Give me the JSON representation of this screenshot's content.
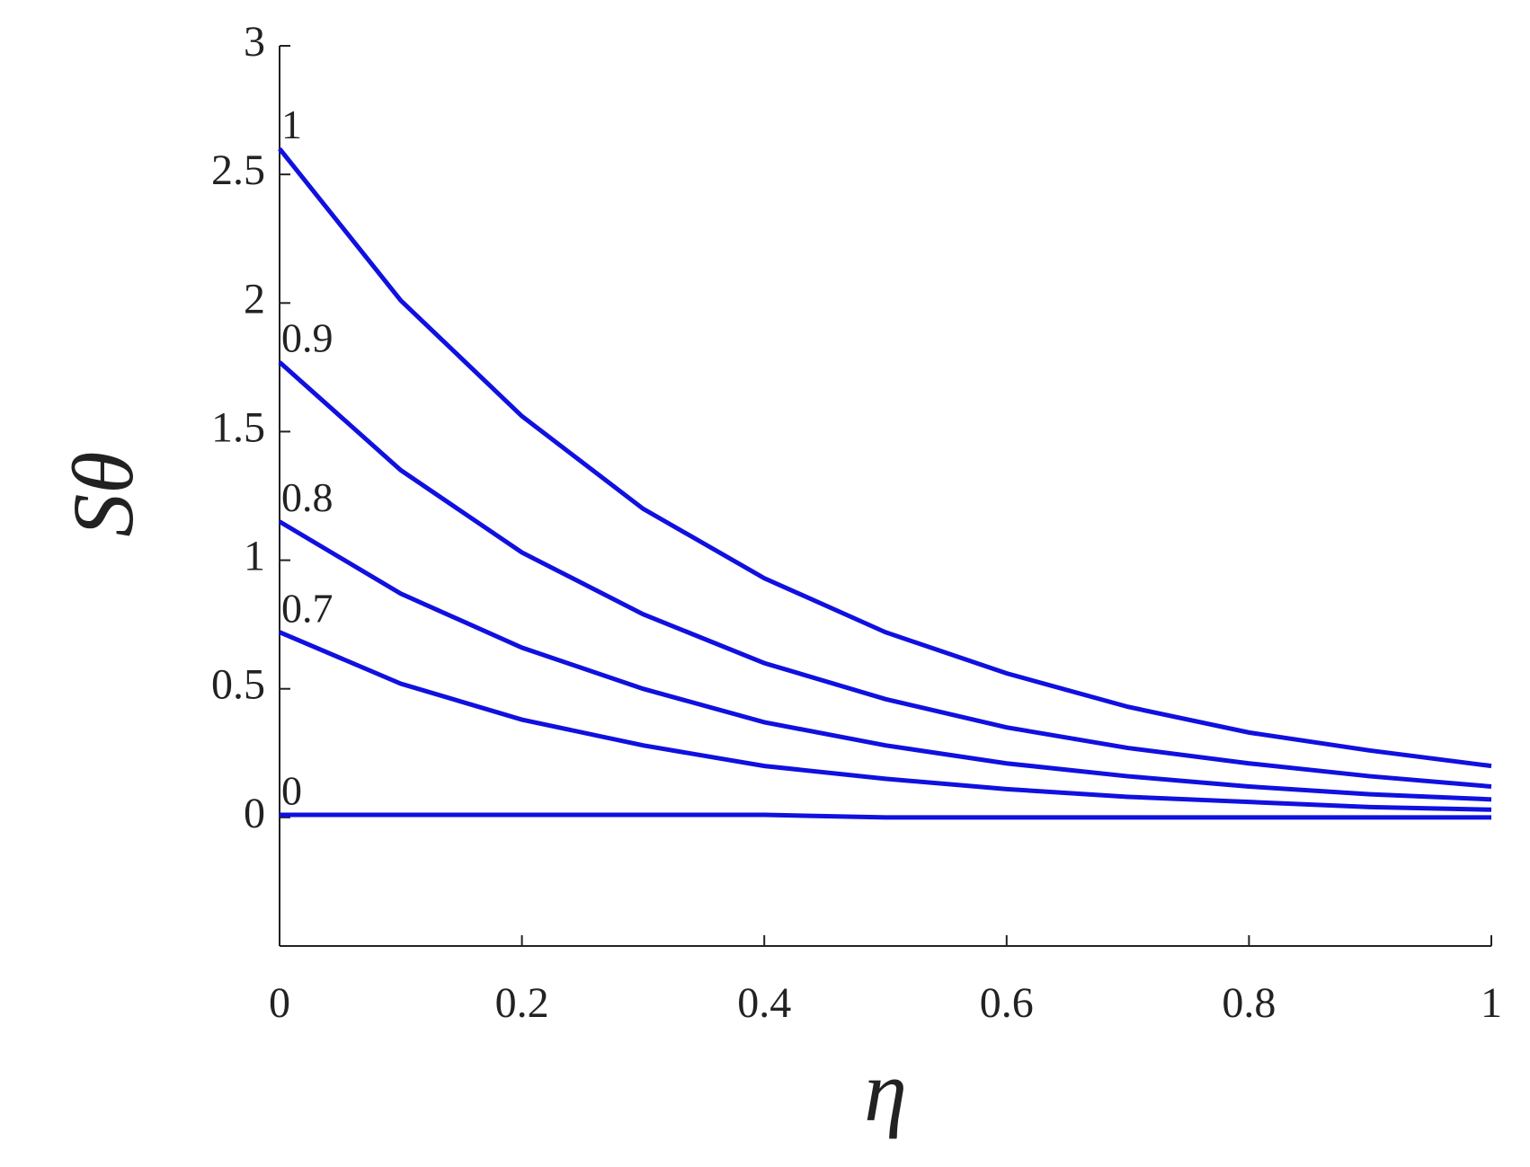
{
  "chart_data": {
    "type": "line",
    "xlabel": "η",
    "ylabel": "Sθ",
    "x": [
      0,
      0.1,
      0.2,
      0.3,
      0.4,
      0.5,
      0.6,
      0.7,
      0.8,
      0.9,
      1
    ],
    "series": [
      {
        "name": "1",
        "color": "#1010e0",
        "values": [
          2.6,
          2.01,
          1.56,
          1.2,
          0.93,
          0.72,
          0.56,
          0.43,
          0.33,
          0.26,
          0.2
        ]
      },
      {
        "name": "0.9",
        "color": "#1010e0",
        "values": [
          1.77,
          1.35,
          1.03,
          0.79,
          0.6,
          0.46,
          0.35,
          0.27,
          0.21,
          0.16,
          0.12
        ]
      },
      {
        "name": "0.8",
        "color": "#1010e0",
        "values": [
          1.15,
          0.87,
          0.66,
          0.5,
          0.37,
          0.28,
          0.21,
          0.16,
          0.12,
          0.09,
          0.07
        ]
      },
      {
        "name": "0.7",
        "color": "#1010e0",
        "values": [
          0.72,
          0.52,
          0.38,
          0.28,
          0.2,
          0.15,
          0.11,
          0.08,
          0.06,
          0.04,
          0.03
        ]
      },
      {
        "name": "0",
        "color": "#1010e0",
        "values": [
          0.01,
          0.01,
          0.01,
          0.01,
          0.01,
          0,
          0,
          0,
          0,
          0,
          0
        ]
      }
    ],
    "xlim": [
      0,
      1
    ],
    "xticks": [
      0,
      0.2,
      0.4,
      0.6,
      0.8,
      1
    ],
    "ylim": [
      -0.5,
      3
    ],
    "yticks": [
      0,
      0.5,
      1,
      1.5,
      2,
      2.5,
      3
    ],
    "grid": false
  }
}
